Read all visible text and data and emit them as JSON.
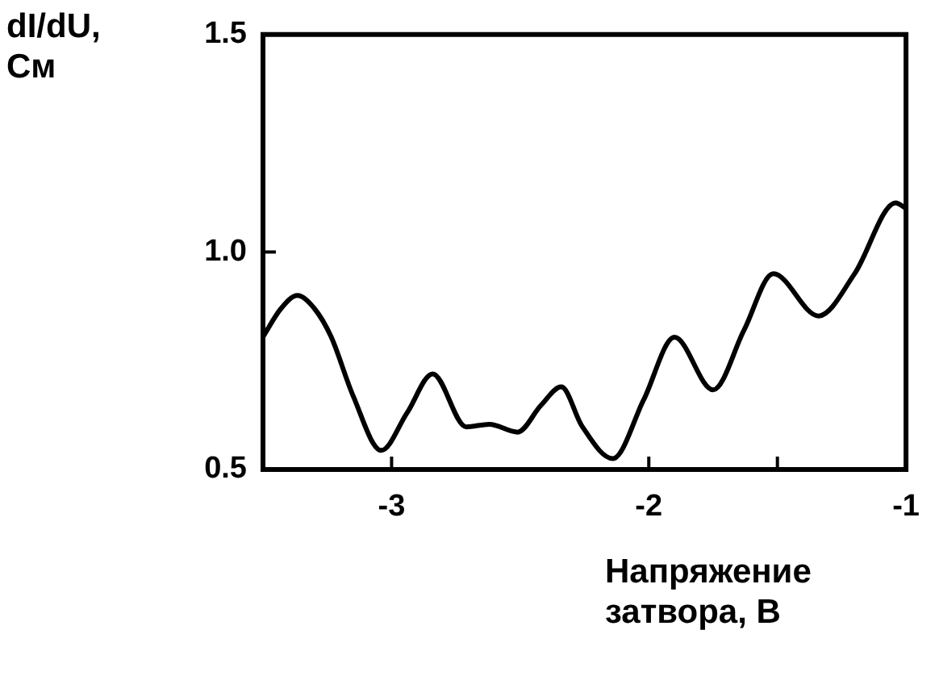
{
  "chart_data": {
    "type": "line",
    "xlabel": "Напряжение затвора, В",
    "ylabel": "dI/dU, См",
    "xlim": [
      -3.5,
      -1
    ],
    "ylim": [
      0.5,
      1.5
    ],
    "xticks": [
      -3,
      -2,
      {
        "value": -1.5,
        "label": null
      },
      -1
    ],
    "yticks": [
      {
        "value": 0.5,
        "label": "0.5"
      },
      {
        "value": 1.0,
        "label": "1.0"
      },
      {
        "value": 1.5,
        "label": "1.5"
      }
    ],
    "grid": false,
    "legend": false,
    "marker": "none",
    "line_style": "solid",
    "series": [
      {
        "color": "#000000",
        "x": [
          -3.5,
          -3.43,
          -3.366,
          -3.3,
          -3.235,
          -3.15,
          -3.04,
          -2.94,
          -2.84,
          -2.71,
          -2.62,
          -2.51,
          -2.42,
          -2.34,
          -2.26,
          -2.14,
          -2.02,
          -1.9,
          -1.75,
          -1.63,
          -1.516,
          -1.34,
          -1.2,
          -1.04,
          -1.0
        ],
        "values": [
          0.805,
          0.87,
          0.9,
          0.87,
          0.805,
          0.67,
          0.544,
          0.63,
          0.72,
          0.598,
          0.604,
          0.586,
          0.647,
          0.69,
          0.6,
          0.525,
          0.66,
          0.804,
          0.683,
          0.82,
          0.95,
          0.853,
          0.95,
          1.113,
          1.1
        ]
      }
    ]
  }
}
